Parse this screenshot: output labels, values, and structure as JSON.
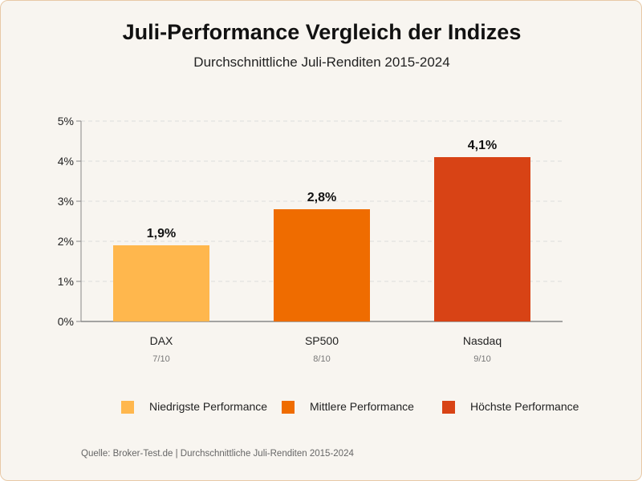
{
  "title": "Juli-Performance Vergleich der Indizes",
  "subtitle": "Durchschnittliche Juli-Renditen 2015-2024",
  "source": "Quelle: Broker-Test.de | Durchschnittliche Juli-Renditen 2015-2024",
  "legend": [
    {
      "label": "Niedrigste Performance",
      "color": "#ffb74d"
    },
    {
      "label": "Mittlere Performance",
      "color": "#ef6c00"
    },
    {
      "label": "Höchste Performance",
      "color": "#d84315"
    }
  ],
  "chart_data": {
    "type": "bar",
    "categories": [
      "DAX",
      "SP500",
      "Nasdaq"
    ],
    "sublabels": [
      "7/10",
      "8/10",
      "9/10"
    ],
    "values": [
      1.9,
      2.8,
      4.1
    ],
    "value_labels": [
      "1,9%",
      "2,8%",
      "4,1%"
    ],
    "colors": [
      "#ffb74d",
      "#ef6c00",
      "#d84315"
    ],
    "ylim": [
      0,
      5
    ],
    "yticks": [
      0,
      1,
      2,
      3,
      4,
      5
    ],
    "ytick_labels": [
      "0%",
      "1%",
      "2%",
      "3%",
      "4%",
      "5%"
    ],
    "grid": true,
    "legend_position": "bottom"
  }
}
